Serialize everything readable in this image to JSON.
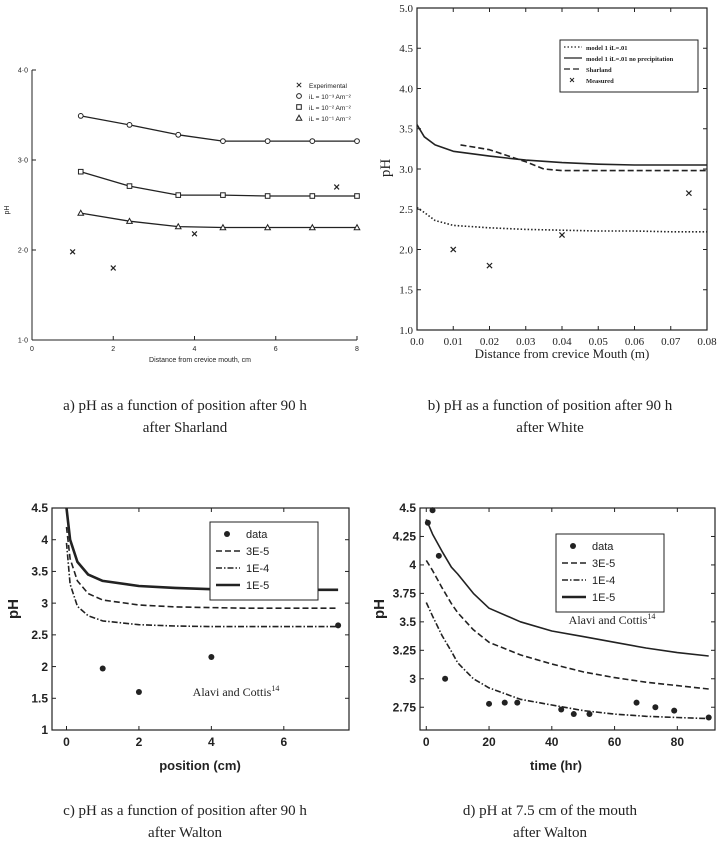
{
  "figure_captions": [
    {
      "line1": "a) pH as a function of position after 90 h",
      "line2": "after Sharland"
    },
    {
      "line1": "b) pH as a function of position after 90 h",
      "line2": "after White"
    },
    {
      "line1": "c) pH as a function of  position after 90 h",
      "line2": "after Walton"
    },
    {
      "line1": "d) pH at 7.5 cm of the mouth",
      "line2": "after Walton"
    }
  ],
  "chart_data": [
    {
      "type": "line",
      "xlabel": "Distance from crevice mouth, cm",
      "ylabel": "pH",
      "xlim": [
        0,
        8
      ],
      "ylim": [
        1.0,
        4.0
      ],
      "xticks": [
        "0",
        "2",
        "4",
        "6",
        "8"
      ],
      "yticks": [
        "1·0",
        "2·0",
        "3·0",
        "4·0"
      ],
      "legend": {
        "position": "top-right",
        "entries": [
          "Experimental",
          "iL = 10⁻³ Am⁻²",
          "iL = 10⁻² Am⁻²",
          "iL = 10⁻¹ Am⁻²"
        ]
      },
      "series": [
        {
          "name": "Experimental",
          "style": "x-marker",
          "x": [
            1.0,
            2.0,
            4.0,
            7.5
          ],
          "y": [
            1.98,
            1.8,
            2.18,
            2.7
          ]
        },
        {
          "name": "iL = 10⁻³ Am⁻²",
          "style": "solid-circle-markers",
          "x": [
            1.2,
            2.4,
            3.6,
            4.7,
            5.8,
            6.9,
            8.0
          ],
          "y": [
            3.49,
            3.39,
            3.28,
            3.21,
            3.21,
            3.21,
            3.21
          ]
        },
        {
          "name": "iL = 10⁻² Am⁻²",
          "style": "solid-square-markers",
          "x": [
            1.2,
            2.4,
            3.6,
            4.7,
            5.8,
            6.9,
            8.0
          ],
          "y": [
            2.87,
            2.71,
            2.61,
            2.61,
            2.6,
            2.6,
            2.6
          ]
        },
        {
          "name": "iL = 10⁻¹ Am⁻²",
          "style": "solid-triangle-markers",
          "x": [
            1.2,
            2.4,
            3.6,
            4.7,
            5.8,
            6.9,
            8.0
          ],
          "y": [
            2.41,
            2.32,
            2.26,
            2.25,
            2.25,
            2.25,
            2.25
          ]
        }
      ]
    },
    {
      "type": "line",
      "xlabel": "Distance from crevice Mouth (m)",
      "ylabel": "pH",
      "xlim": [
        0.0,
        0.08
      ],
      "ylim": [
        1.0,
        5.0
      ],
      "xticks": [
        "0.0",
        "0.01",
        "0.02",
        "0.03",
        "0.04",
        "0.05",
        "0.06",
        "0.07",
        "0.08"
      ],
      "yticks": [
        "1.0",
        "1.5",
        "2.0",
        "2.5",
        "3.0",
        "3.5",
        "4.0",
        "4.5",
        "5.0"
      ],
      "legend": {
        "position": "top-right",
        "entries": [
          "model 1 iL=.01",
          "model 1 iL=.01 no precipitation",
          "Sharland",
          "Measured"
        ]
      },
      "series": [
        {
          "name": "model 1 iL=.01",
          "style": "dotted",
          "x": [
            0.0,
            0.002,
            0.005,
            0.01,
            0.02,
            0.03,
            0.04,
            0.05,
            0.06,
            0.07,
            0.08
          ],
          "y": [
            2.52,
            2.46,
            2.36,
            2.3,
            2.27,
            2.25,
            2.24,
            2.23,
            2.23,
            2.22,
            2.22
          ]
        },
        {
          "name": "model 1 iL=.01 no precipitation",
          "style": "solid",
          "x": [
            0.0,
            0.002,
            0.005,
            0.01,
            0.02,
            0.03,
            0.04,
            0.05,
            0.06,
            0.07,
            0.08
          ],
          "y": [
            3.55,
            3.4,
            3.3,
            3.22,
            3.16,
            3.11,
            3.08,
            3.06,
            3.05,
            3.05,
            3.05
          ]
        },
        {
          "name": "Sharland",
          "style": "dashed",
          "x": [
            0.012,
            0.02,
            0.03,
            0.035,
            0.04,
            0.05,
            0.06,
            0.07,
            0.08
          ],
          "y": [
            3.3,
            3.24,
            3.09,
            3.0,
            2.98,
            2.98,
            2.98,
            2.98,
            2.98
          ]
        },
        {
          "name": "Measured",
          "style": "x-marker",
          "x": [
            0.01,
            0.02,
            0.04,
            0.075
          ],
          "y": [
            2.0,
            1.8,
            2.18,
            2.7
          ]
        }
      ]
    },
    {
      "type": "line",
      "xlabel": "position (cm)",
      "ylabel": "pH",
      "xlim": [
        -0.4,
        7.8
      ],
      "ylim": [
        1.0,
        4.5
      ],
      "xticks": [
        "0",
        "2",
        "4",
        "6"
      ],
      "yticks": [
        "1",
        "1.5",
        "2",
        "2.5",
        "3",
        "3.5",
        "4",
        "4.5"
      ],
      "annotation": "Alavi and Cottis¹⁴",
      "legend": {
        "position": "top-right",
        "entries": [
          "data",
          "3E-5",
          "1E-4",
          "1E-5"
        ]
      },
      "series": [
        {
          "name": "data",
          "style": "dot-marker",
          "x": [
            1.0,
            2.0,
            4.0,
            7.5
          ],
          "y": [
            1.97,
            1.6,
            2.15,
            2.65
          ]
        },
        {
          "name": "3E-5",
          "style": "dashed",
          "x": [
            0.0,
            0.1,
            0.3,
            0.6,
            1.0,
            2.0,
            3.0,
            4.0,
            5.0,
            6.0,
            7.5
          ],
          "y": [
            4.2,
            3.7,
            3.35,
            3.15,
            3.05,
            2.97,
            2.94,
            2.93,
            2.92,
            2.92,
            2.92
          ]
        },
        {
          "name": "1E-4",
          "style": "dash-dot",
          "x": [
            0.0,
            0.1,
            0.3,
            0.6,
            1.0,
            2.0,
            3.0,
            4.0,
            5.0,
            6.0,
            7.5
          ],
          "y": [
            3.95,
            3.3,
            2.95,
            2.8,
            2.72,
            2.66,
            2.64,
            2.63,
            2.63,
            2.63,
            2.63
          ]
        },
        {
          "name": "1E-5",
          "style": "solid-thick",
          "x": [
            0.0,
            0.1,
            0.3,
            0.6,
            1.0,
            2.0,
            3.0,
            4.0,
            5.0,
            6.0,
            7.5
          ],
          "y": [
            4.5,
            4.0,
            3.65,
            3.45,
            3.35,
            3.27,
            3.24,
            3.22,
            3.21,
            3.21,
            3.21
          ]
        }
      ]
    },
    {
      "type": "line",
      "xlabel": "time (hr)",
      "ylabel": "pH",
      "xlim": [
        -2,
        92
      ],
      "ylim": [
        2.55,
        4.5
      ],
      "xticks": [
        "0",
        "20",
        "40",
        "60",
        "80"
      ],
      "yticks": [
        "2.75",
        "3",
        "3.25",
        "3.5",
        "3.75",
        "4",
        "4.25",
        "4.5"
      ],
      "annotation": "Alavi and Cottis¹⁴",
      "legend": {
        "position": "top-right",
        "entries": [
          "data",
          "3E-5",
          "1E-4",
          "1E-5"
        ]
      },
      "series": [
        {
          "name": "data",
          "style": "dot-marker",
          "x": [
            0.5,
            2,
            4,
            6,
            20,
            25,
            29,
            43,
            47,
            52,
            67,
            73,
            79,
            90
          ],
          "y": [
            4.37,
            4.48,
            4.08,
            3.0,
            2.78,
            2.79,
            2.79,
            2.73,
            2.69,
            2.69,
            2.79,
            2.75,
            2.72,
            2.66
          ]
        },
        {
          "name": "1E-5",
          "style": "solid",
          "x": [
            0,
            2,
            5,
            8,
            10,
            15,
            20,
            30,
            40,
            50,
            60,
            70,
            80,
            90
          ],
          "y": [
            4.4,
            4.27,
            4.12,
            3.98,
            3.92,
            3.75,
            3.62,
            3.5,
            3.42,
            3.37,
            3.32,
            3.27,
            3.23,
            3.2
          ]
        },
        {
          "name": "3E-5",
          "style": "dashed",
          "x": [
            0,
            2,
            5,
            8,
            10,
            15,
            20,
            30,
            40,
            50,
            60,
            70,
            80,
            90
          ],
          "y": [
            4.04,
            3.95,
            3.8,
            3.66,
            3.58,
            3.43,
            3.32,
            3.21,
            3.13,
            3.06,
            3.01,
            2.97,
            2.94,
            2.91
          ]
        },
        {
          "name": "1E-4",
          "style": "dash-dot",
          "x": [
            0,
            2,
            5,
            8,
            10,
            15,
            20,
            30,
            40,
            50,
            60,
            70,
            80,
            90
          ],
          "y": [
            3.67,
            3.55,
            3.38,
            3.24,
            3.14,
            3.0,
            2.92,
            2.82,
            2.77,
            2.72,
            2.69,
            2.67,
            2.66,
            2.65
          ]
        }
      ]
    }
  ]
}
